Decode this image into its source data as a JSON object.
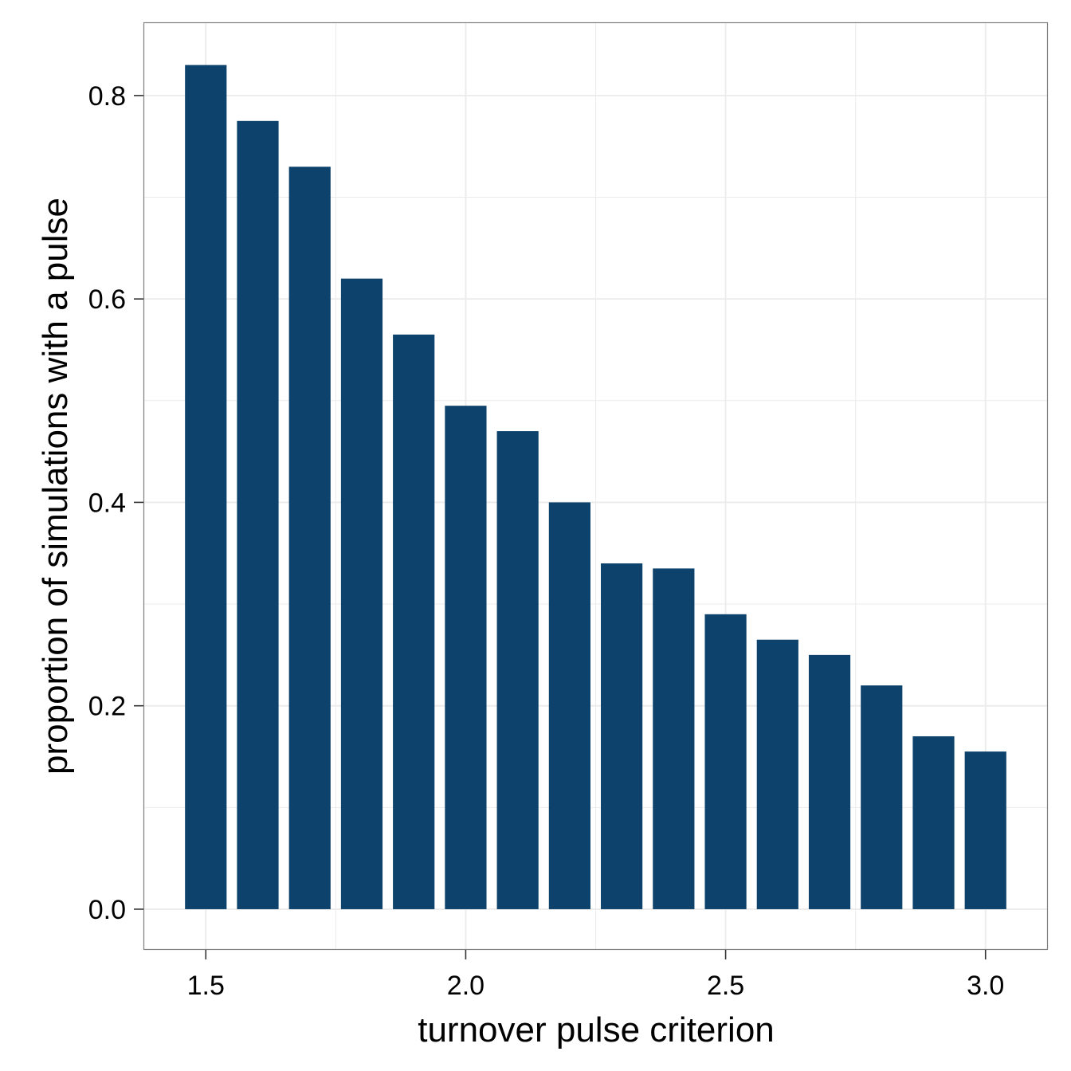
{
  "chart_data": {
    "type": "bar",
    "title": "",
    "xlabel": "turnover pulse criterion",
    "ylabel": "proportion of simulations with a pulse",
    "x": [
      1.5,
      1.6,
      1.7,
      1.8,
      1.9,
      2.0,
      2.1,
      2.2,
      2.3,
      2.4,
      2.5,
      2.6,
      2.7,
      2.8,
      2.9,
      3.0
    ],
    "values": [
      0.83,
      0.775,
      0.73,
      0.62,
      0.565,
      0.495,
      0.47,
      0.4,
      0.34,
      0.335,
      0.29,
      0.265,
      0.25,
      0.22,
      0.17,
      0.155
    ],
    "xlim": [
      1.38,
      3.12
    ],
    "ylim": [
      -0.04,
      0.872
    ],
    "xticks": [
      1.5,
      2.0,
      2.5,
      3.0
    ],
    "xtick_labels": [
      "1.5",
      "2.0",
      "2.5",
      "3.0"
    ],
    "yticks": [
      0.0,
      0.2,
      0.4,
      0.6,
      0.8
    ],
    "ytick_labels": [
      "0.0",
      "0.2",
      "0.4",
      "0.6",
      "0.8"
    ],
    "grid": true,
    "bar_color": "#0c426c",
    "grid_color": "#ebebeb",
    "frame_color": "#7f7f7f"
  }
}
